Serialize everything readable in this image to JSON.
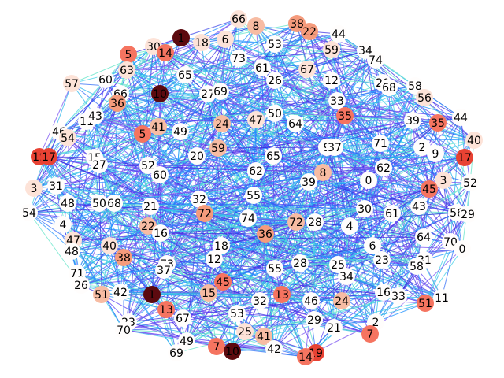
{
  "palette": {
    "edge_colors": [
      "#3b2fe0",
      "#5b3cf2",
      "#2f6bf5",
      "#1e90ff",
      "#27b4ea",
      "#3fd0e6",
      "#62e4c8",
      "#7a52f0"
    ],
    "node_colors": {
      "white": "#fffdfc",
      "pale": "#fde3d8",
      "light": "#f7bca3",
      "mid": "#f59b7c",
      "salmon": "#f57460",
      "red": "#e84233",
      "dark": "#5c0a0f"
    }
  },
  "graph": {
    "edge_count_visual": "dense",
    "nodes": [
      {
        "label": "1",
        "shade": "dark"
      },
      {
        "label": "66",
        "shade": "pale"
      },
      {
        "label": "8",
        "shade": "light"
      },
      {
        "label": "38",
        "shade": "mid"
      },
      {
        "label": "22",
        "shade": "mid"
      },
      {
        "label": "44",
        "shade": "white"
      },
      {
        "label": "18",
        "shade": "pale"
      },
      {
        "label": "6",
        "shade": "pale"
      },
      {
        "label": "53",
        "shade": "white"
      },
      {
        "label": "5",
        "shade": "salmon"
      },
      {
        "label": "30",
        "shade": "pale"
      },
      {
        "label": "14",
        "shade": "salmon"
      },
      {
        "label": "59",
        "shade": "pale"
      },
      {
        "label": "34",
        "shade": "white"
      },
      {
        "label": "74",
        "shade": "white"
      },
      {
        "label": "73",
        "shade": "white"
      },
      {
        "label": "61",
        "shade": "white"
      },
      {
        "label": "67",
        "shade": "pale"
      },
      {
        "label": "63",
        "shade": "pale"
      },
      {
        "label": "57",
        "shade": "pale"
      },
      {
        "label": "60",
        "shade": "white"
      },
      {
        "label": "65",
        "shade": "white"
      },
      {
        "label": "26",
        "shade": "white"
      },
      {
        "label": "12",
        "shade": "white"
      },
      {
        "label": "20",
        "shade": "white"
      },
      {
        "label": "68",
        "shade": "white"
      },
      {
        "label": "58",
        "shade": "white"
      },
      {
        "label": "10",
        "shade": "dark"
      },
      {
        "label": "27",
        "shade": "white"
      },
      {
        "label": "69",
        "shade": "white"
      },
      {
        "label": "66",
        "shade": "white"
      },
      {
        "label": "36",
        "shade": "mid"
      },
      {
        "label": "56",
        "shade": "pale"
      },
      {
        "label": "33",
        "shade": "white"
      },
      {
        "label": "11",
        "shade": "white"
      },
      {
        "label": "43",
        "shade": "white"
      },
      {
        "label": "35",
        "shade": "salmon"
      },
      {
        "label": "50",
        "shade": "white"
      },
      {
        "label": "64",
        "shade": "white"
      },
      {
        "label": "39",
        "shade": "white"
      },
      {
        "label": "35",
        "shade": "salmon"
      },
      {
        "label": "44",
        "shade": "white"
      },
      {
        "label": "24",
        "shade": "light"
      },
      {
        "label": "47",
        "shade": "pale"
      },
      {
        "label": "41",
        "shade": "light"
      },
      {
        "label": "46",
        "shade": "white"
      },
      {
        "label": "49",
        "shade": "white"
      },
      {
        "label": "5",
        "shade": "salmon"
      },
      {
        "label": "40",
        "shade": "pale"
      },
      {
        "label": "2",
        "shade": "white"
      },
      {
        "label": "9",
        "shade": "white"
      },
      {
        "label": "54",
        "shade": "pale"
      },
      {
        "label": "19",
        "shade": "red"
      },
      {
        "label": "17",
        "shade": "red"
      },
      {
        "label": "71",
        "shade": "white"
      },
      {
        "label": "9",
        "shade": "white"
      },
      {
        "label": "37",
        "shade": "white"
      },
      {
        "label": "59",
        "shade": "light"
      },
      {
        "label": "17",
        "shade": "red"
      },
      {
        "label": "15",
        "shade": "white"
      },
      {
        "label": "20",
        "shade": "white"
      },
      {
        "label": "65",
        "shade": "white"
      },
      {
        "label": "27",
        "shade": "white"
      },
      {
        "label": "52",
        "shade": "white"
      },
      {
        "label": "3",
        "shade": "pale"
      },
      {
        "label": "62",
        "shade": "white"
      },
      {
        "label": "52",
        "shade": "white"
      },
      {
        "label": "8",
        "shade": "light"
      },
      {
        "label": "60",
        "shade": "white"
      },
      {
        "label": "62",
        "shade": "white"
      },
      {
        "label": "39",
        "shade": "white"
      },
      {
        "label": "31",
        "shade": "white"
      },
      {
        "label": "0",
        "shade": "white"
      },
      {
        "label": "45",
        "shade": "salmon"
      },
      {
        "label": "3",
        "shade": "pale"
      },
      {
        "label": "48",
        "shade": "white"
      },
      {
        "label": "50",
        "shade": "white"
      },
      {
        "label": "68",
        "shade": "white"
      },
      {
        "label": "32",
        "shade": "white"
      },
      {
        "label": "55",
        "shade": "white"
      },
      {
        "label": "54",
        "shade": "white"
      },
      {
        "label": "21",
        "shade": "white"
      },
      {
        "label": "43",
        "shade": "white"
      },
      {
        "label": "56",
        "shade": "white"
      },
      {
        "label": "29",
        "shade": "white"
      },
      {
        "label": "4",
        "shade": "white"
      },
      {
        "label": "72",
        "shade": "mid"
      },
      {
        "label": "30",
        "shade": "white"
      },
      {
        "label": "61",
        "shade": "white"
      },
      {
        "label": "74",
        "shade": "white"
      },
      {
        "label": "72",
        "shade": "light"
      },
      {
        "label": "28",
        "shade": "white"
      },
      {
        "label": "4",
        "shade": "white"
      },
      {
        "label": "22",
        "shade": "light"
      },
      {
        "label": "16",
        "shade": "white"
      },
      {
        "label": "47",
        "shade": "pale"
      },
      {
        "label": "36",
        "shade": "mid"
      },
      {
        "label": "64",
        "shade": "white"
      },
      {
        "label": "70",
        "shade": "white"
      },
      {
        "label": "48",
        "shade": "white"
      },
      {
        "label": "40",
        "shade": "pale"
      },
      {
        "label": "6",
        "shade": "white"
      },
      {
        "label": "0",
        "shade": "white"
      },
      {
        "label": "38",
        "shade": "mid"
      },
      {
        "label": "18",
        "shade": "white"
      },
      {
        "label": "23",
        "shade": "white"
      },
      {
        "label": "31",
        "shade": "white"
      },
      {
        "label": "73",
        "shade": "white"
      },
      {
        "label": "58",
        "shade": "white"
      },
      {
        "label": "71",
        "shade": "white"
      },
      {
        "label": "12",
        "shade": "white"
      },
      {
        "label": "37",
        "shade": "white"
      },
      {
        "label": "28",
        "shade": "white"
      },
      {
        "label": "25",
        "shade": "white"
      },
      {
        "label": "55",
        "shade": "white"
      },
      {
        "label": "34",
        "shade": "white"
      },
      {
        "label": "26",
        "shade": "white"
      },
      {
        "label": "45",
        "shade": "salmon"
      },
      {
        "label": "15",
        "shade": "light"
      },
      {
        "label": "1",
        "shade": "dark"
      },
      {
        "label": "13",
        "shade": "salmon"
      },
      {
        "label": "51",
        "shade": "light"
      },
      {
        "label": "42",
        "shade": "white"
      },
      {
        "label": "32",
        "shade": "white"
      },
      {
        "label": "46",
        "shade": "white"
      },
      {
        "label": "24",
        "shade": "light"
      },
      {
        "label": "16",
        "shade": "white"
      },
      {
        "label": "33",
        "shade": "white"
      },
      {
        "label": "11",
        "shade": "white"
      },
      {
        "label": "51",
        "shade": "salmon"
      },
      {
        "label": "13",
        "shade": "salmon"
      },
      {
        "label": "67",
        "shade": "white"
      },
      {
        "label": "53",
        "shade": "white"
      },
      {
        "label": "23",
        "shade": "white"
      },
      {
        "label": "29",
        "shade": "white"
      },
      {
        "label": "21",
        "shade": "white"
      },
      {
        "label": "2",
        "shade": "white"
      },
      {
        "label": "70",
        "shade": "white"
      },
      {
        "label": "25",
        "shade": "pale"
      },
      {
        "label": "41",
        "shade": "light"
      },
      {
        "label": "49",
        "shade": "white"
      },
      {
        "label": "7",
        "shade": "salmon"
      },
      {
        "label": "69",
        "shade": "white"
      },
      {
        "label": "7",
        "shade": "salmon"
      },
      {
        "label": "10",
        "shade": "dark"
      },
      {
        "label": "42",
        "shade": "white"
      },
      {
        "label": "19",
        "shade": "red"
      },
      {
        "label": "14",
        "shade": "salmon"
      },
      {
        "label": "57",
        "shade": "pale"
      }
    ]
  }
}
